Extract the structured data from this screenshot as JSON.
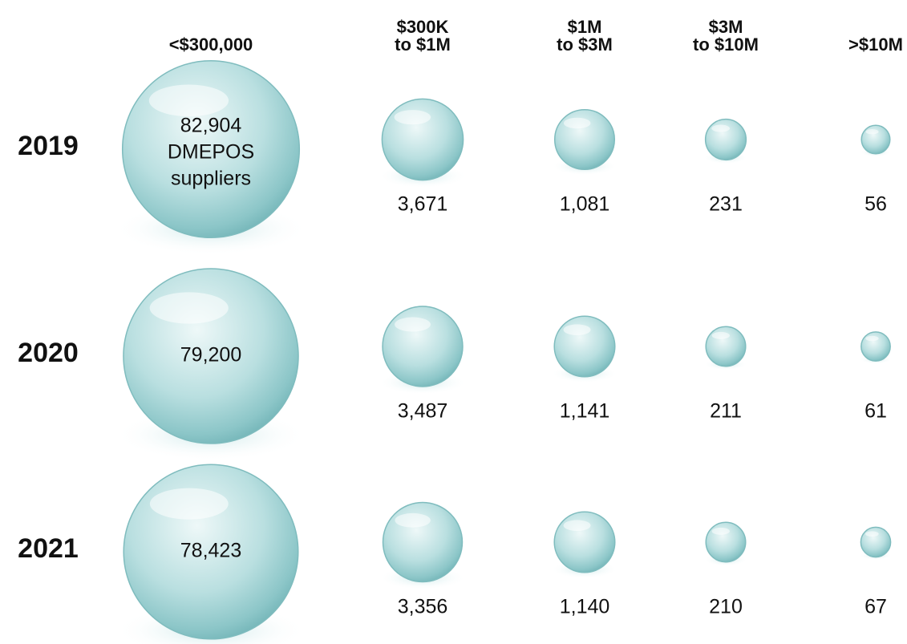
{
  "chart_data": {
    "type": "bubble",
    "categories": [
      [
        "<$300,000"
      ],
      [
        "$300K",
        "to $1M"
      ],
      [
        "$1M",
        "to $3M"
      ],
      [
        "$3M",
        "to $10M"
      ],
      [
        ">$10M"
      ]
    ],
    "annotation": "DMEPOS suppliers",
    "series": [
      {
        "name": "2019",
        "values": [
          82904,
          3671,
          1081,
          231,
          56
        ],
        "value_labels": [
          "82,904",
          "3,671",
          "1,081",
          "231",
          "56"
        ]
      },
      {
        "name": "2020",
        "values": [
          79200,
          3487,
          1141,
          211,
          61
        ],
        "value_labels": [
          "79,200",
          "3,487",
          "1,141",
          "211",
          "61"
        ]
      },
      {
        "name": "2021",
        "values": [
          78423,
          3356,
          1140,
          210,
          67
        ],
        "value_labels": [
          "78,423",
          "3,356",
          "1,140",
          "210",
          "67"
        ]
      }
    ]
  }
}
